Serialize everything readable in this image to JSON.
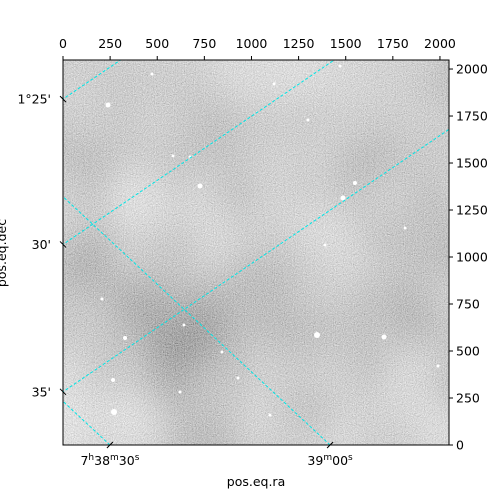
{
  "chart_data": {
    "type": "image",
    "xlabel": "pos.eq.ra",
    "ylabel": "pos.eq.dec",
    "xlim": [
      0,
      2048
    ],
    "ylim": [
      0,
      2048
    ],
    "xticks": [
      0,
      250,
      500,
      750,
      1000,
      1250,
      1500,
      1750,
      2000
    ],
    "yticks": [
      0,
      250,
      500,
      750,
      1000,
      1250,
      1500,
      1750,
      2000
    ],
    "wcs_xticks": [
      {
        "value": 249,
        "label": "7h38m30s"
      },
      {
        "value": 1417,
        "label": "39m00s"
      }
    ],
    "wcs_yticks": [
      {
        "value": 1840,
        "label": "1°25'"
      },
      {
        "value": 1067,
        "label": "30'"
      },
      {
        "value": 283,
        "label": "35'"
      }
    ],
    "grid": true,
    "grid_color": "#00e5e5"
  }
}
